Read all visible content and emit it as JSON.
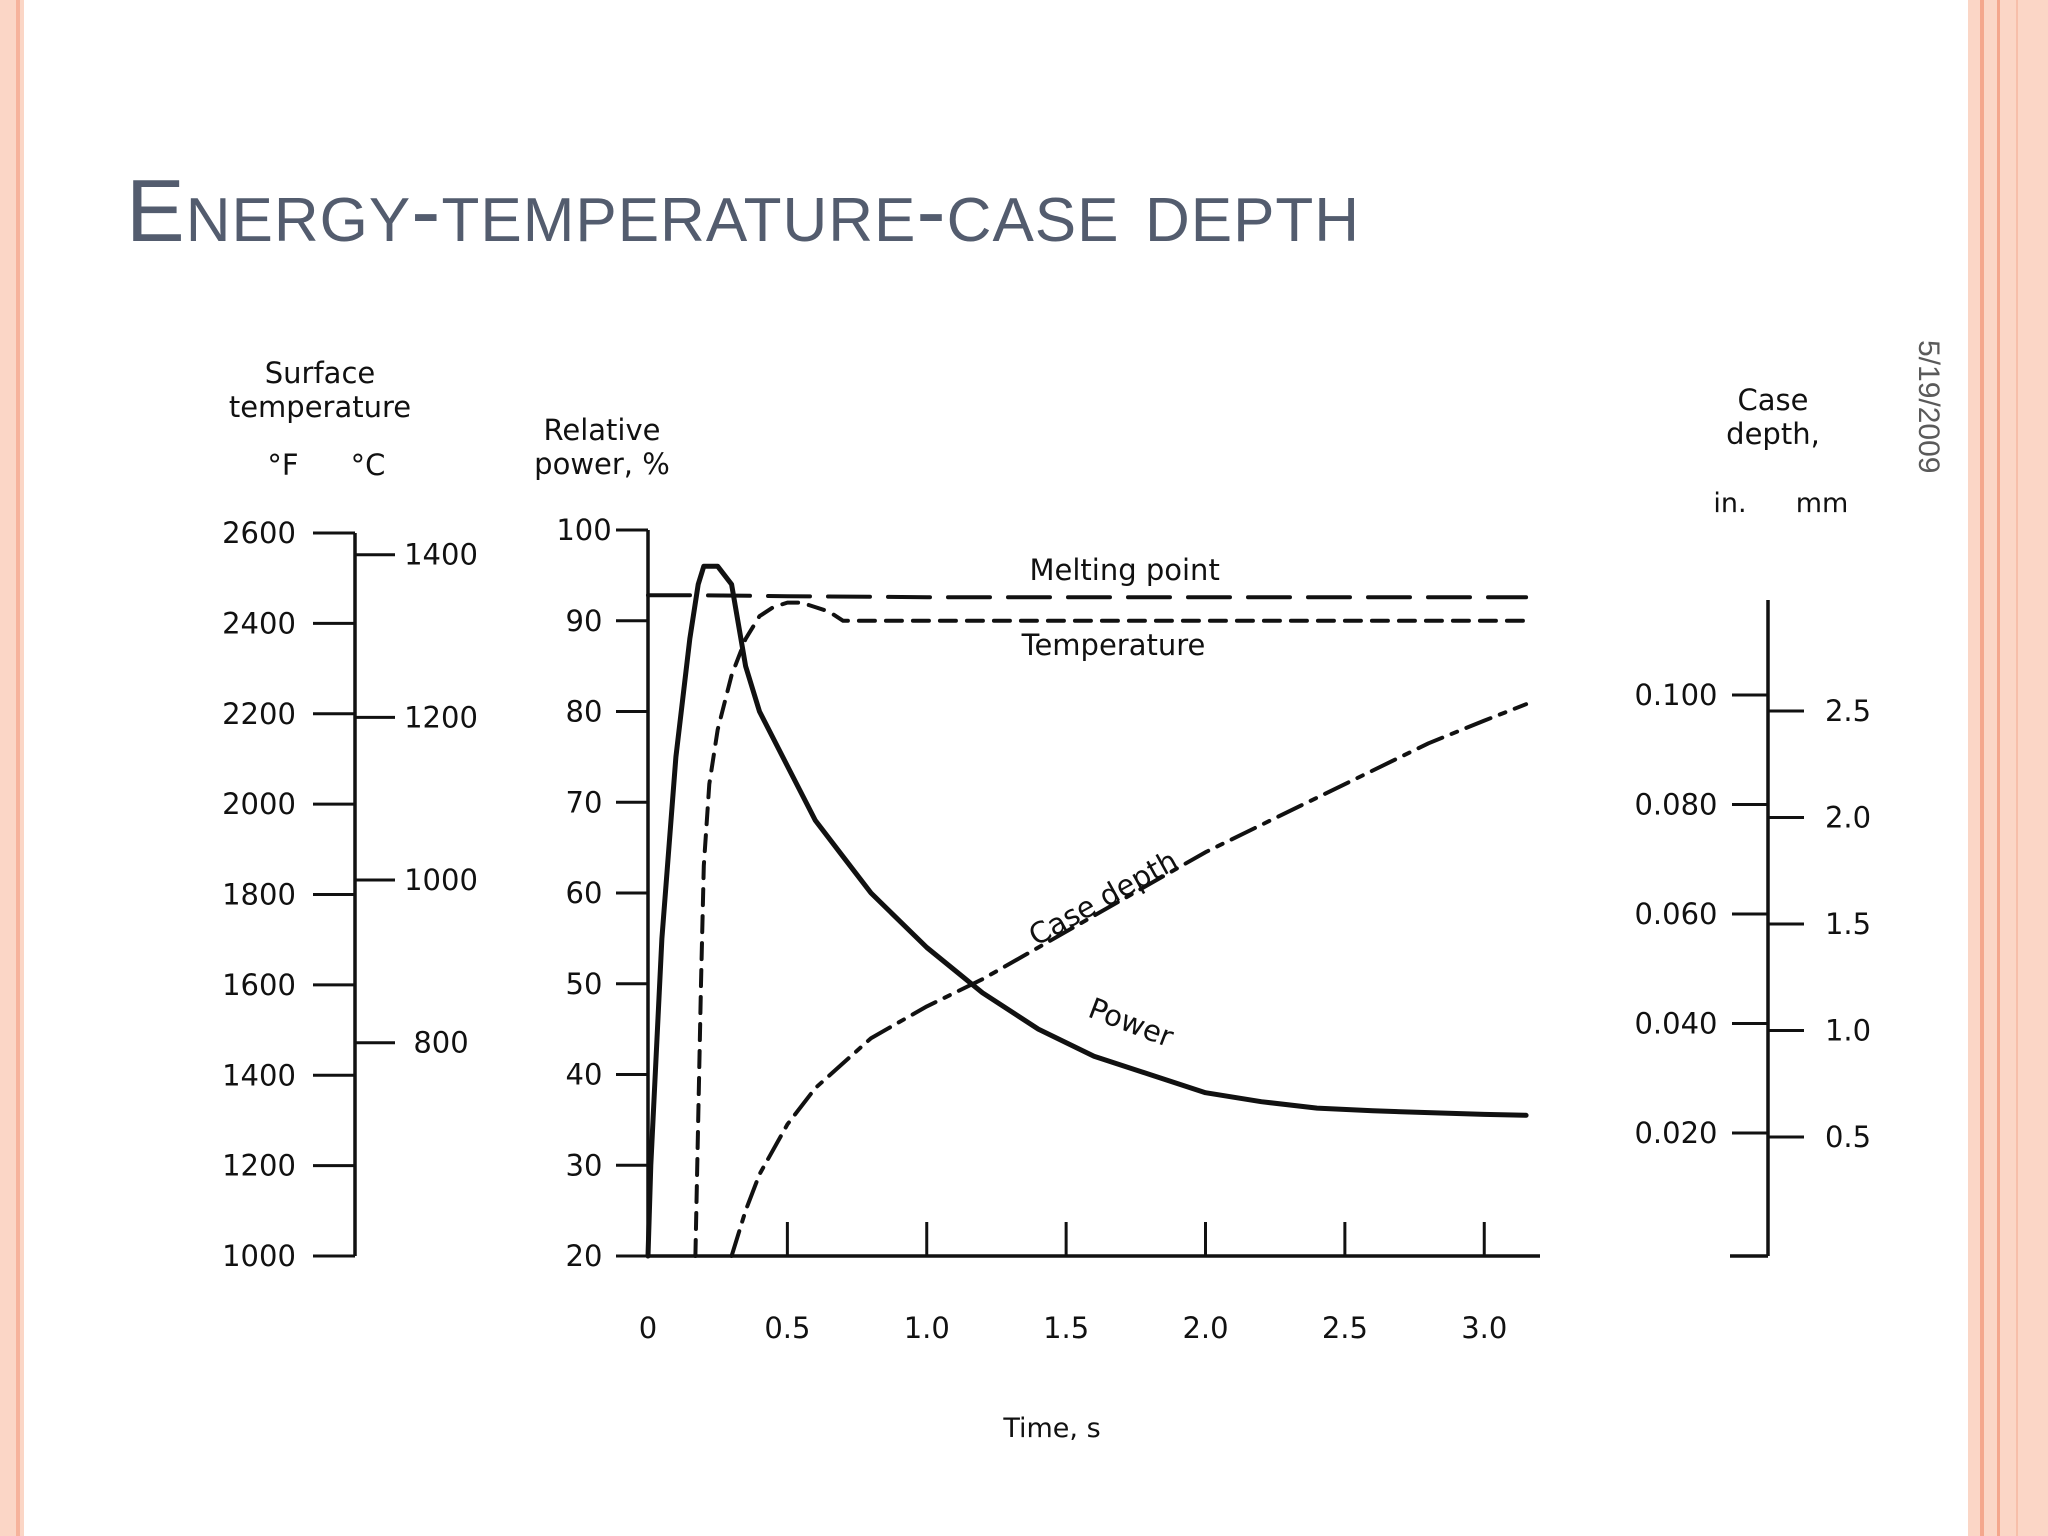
{
  "slide": {
    "title": "Energy-temperature-case depth",
    "date": "5/19/2009"
  },
  "colors": {
    "accent": "#fbd6c6",
    "accent_line": "#f4a78d",
    "title": "#535c6e",
    "ink": "#111111"
  },
  "chart_data": {
    "type": "line",
    "title": "",
    "xlabel": "Time, s",
    "ylabel": "Relative power, %",
    "xlim": [
      0,
      3.2
    ],
    "ylim": [
      20,
      100
    ],
    "x_ticks": [
      0,
      0.5,
      1.0,
      1.5,
      2.0,
      2.5,
      3.0
    ],
    "x_tick_labels": [
      "0",
      "0.5",
      "1.0",
      "1.5",
      "2.0",
      "2.5",
      "3.0"
    ],
    "y_ticks": [
      20,
      30,
      40,
      50,
      60,
      70,
      80,
      90,
      100
    ],
    "y_tick_labels": [
      "20",
      "30",
      "40",
      "50",
      "60",
      "70",
      "80",
      "90",
      "100"
    ],
    "grid": false,
    "legend": "none",
    "series": [
      {
        "name": "Power",
        "style": "solid",
        "x": [
          0.0,
          0.01,
          0.05,
          0.1,
          0.15,
          0.18,
          0.2,
          0.25,
          0.3,
          0.35,
          0.4,
          0.5,
          0.6,
          0.7,
          0.8,
          1.0,
          1.2,
          1.4,
          1.6,
          1.8,
          2.0,
          2.2,
          2.4,
          2.6,
          2.8,
          3.0,
          3.15
        ],
        "y": [
          20,
          30,
          55,
          75,
          88,
          94,
          96,
          96,
          94,
          85,
          80,
          74,
          68,
          64,
          60,
          54,
          49,
          45,
          42,
          40,
          38,
          37,
          36.3,
          36,
          35.8,
          35.6,
          35.5
        ]
      },
      {
        "name": "Temperature",
        "style": "dashed",
        "x": [
          0.17,
          0.19,
          0.2,
          0.22,
          0.25,
          0.3,
          0.35,
          0.4,
          0.45,
          0.5,
          0.55,
          0.6,
          0.65,
          0.7,
          0.8,
          1.0,
          1.5,
          2.0,
          2.5,
          3.15
        ],
        "y": [
          20,
          50,
          63,
          72,
          78,
          84,
          88,
          90.5,
          91.5,
          92,
          92,
          91.5,
          91,
          90,
          90,
          90,
          90,
          90,
          90,
          90
        ]
      },
      {
        "name": "Melting point",
        "style": "long-dashed",
        "x": [
          0.0,
          0.2,
          0.5,
          1.0,
          1.5,
          2.0,
          2.5,
          3.15
        ],
        "y": [
          92.8,
          92.8,
          92.7,
          92.6,
          92.6,
          92.6,
          92.6,
          92.6
        ]
      },
      {
        "name": "Case depth",
        "style": "dash-dot",
        "x": [
          0.3,
          0.35,
          0.4,
          0.5,
          0.6,
          0.8,
          1.0,
          1.2,
          1.4,
          1.6,
          1.8,
          2.0,
          2.2,
          2.4,
          2.6,
          2.8,
          3.0,
          3.15
        ],
        "y": [
          20,
          25,
          29,
          34.5,
          38.5,
          44,
          47.5,
          50.5,
          54,
          57.5,
          61,
          64.5,
          67.5,
          70.5,
          73.5,
          76.5,
          79,
          80.8
        ]
      }
    ],
    "annotations": [
      {
        "text": "Melting point",
        "x": 1.71,
        "y": 94.5
      },
      {
        "text": "Temperature",
        "x": 1.67,
        "y": 86.2
      },
      {
        "text": "Case depth",
        "x": 1.65,
        "y": 58.5,
        "rotate": -29
      },
      {
        "text": "Power",
        "x": 1.72,
        "y": 44.7,
        "rotate": 21
      }
    ],
    "surface_temperature_axis": {
      "label": [
        "Surface",
        "temperature"
      ],
      "unit_f": "°F",
      "unit_c": "°C",
      "f_ticks": [
        2600,
        2400,
        2200,
        2000,
        1800,
        1600,
        1400,
        1200,
        1000
      ],
      "f_tick_labels": [
        "2600",
        "2400",
        "2200",
        "2000",
        "1800",
        "1600",
        "1400",
        "1200",
        "1000"
      ],
      "c_ticks": [
        1400,
        1200,
        1000,
        800
      ],
      "c_tick_labels": [
        "1400",
        "1200",
        "1000",
        "800"
      ]
    },
    "case_depth_axis": {
      "label": [
        "Case",
        "depth,"
      ],
      "unit_in": "in.",
      "unit_mm": "mm",
      "in_ticks": [
        0.1,
        0.08,
        0.06,
        0.04,
        0.02
      ],
      "in_tick_labels": [
        "0.100",
        "0.080",
        "0.060",
        "0.040",
        "0.020"
      ],
      "mm_ticks": [
        2.5,
        2.0,
        1.5,
        1.0,
        0.5
      ],
      "mm_tick_labels": [
        "2.5",
        "2.0",
        "1.5",
        "1.0",
        "0.5"
      ]
    }
  }
}
